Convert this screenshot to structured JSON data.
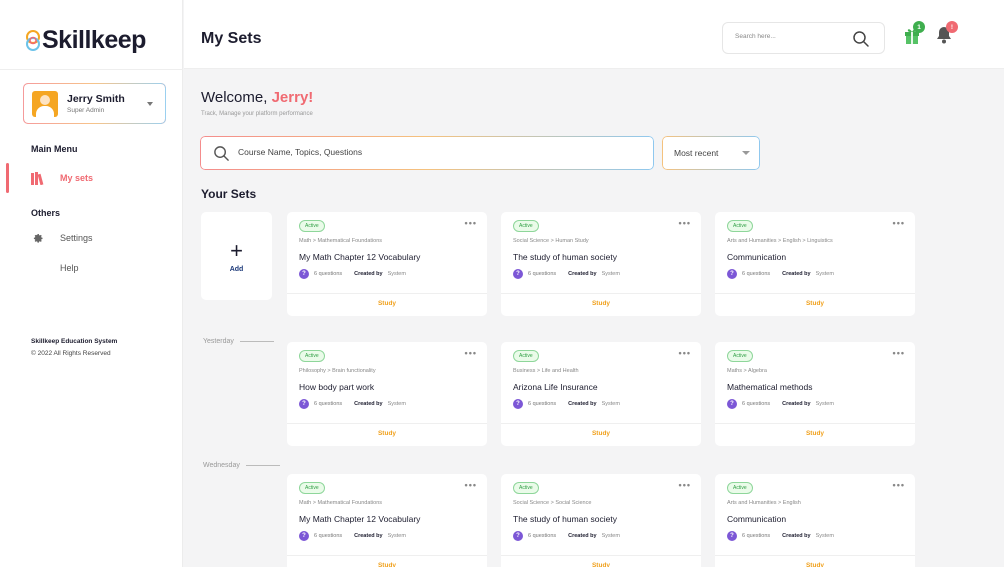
{
  "brand": {
    "name": "Skillkeep"
  },
  "sidebar": {
    "user": {
      "name": "Jerry Smith",
      "role": "Super Admin"
    },
    "main_menu_heading": "Main Menu",
    "my_sets_label": "My sets",
    "others_heading": "Others",
    "settings_label": "Settings",
    "help_label": "Help",
    "footer_title": "Skillkeep Education System",
    "footer_copy": "© 2022 All Rights Reserved"
  },
  "header": {
    "title": "My Sets",
    "search_placeholder": "Search here...",
    "gift_badge": "1",
    "bell_badge": "!"
  },
  "main": {
    "welcome_prefix": "Welcome, ",
    "welcome_name": "Jerry!",
    "welcome_sub": "Track, Manage your platform performance",
    "search_placeholder": "Course Name, Topics, Questions",
    "sort_value": "Most recent",
    "section_title": "Your Sets",
    "add_label": "Add",
    "group_yesterday": "Yesterday",
    "group_wednesday": "Wednesday"
  },
  "cards": [
    {
      "status": "Active",
      "crumb": "Math > Mathematical Foundations",
      "title": "My Math Chapter 12 Vocabulary",
      "questions": "6 questions",
      "created_label": "Created by",
      "creator": "System",
      "action": "Study"
    },
    {
      "status": "Active",
      "crumb": "Social Science > Human Study",
      "title": "The study of human society",
      "questions": "6 questions",
      "created_label": "Created by",
      "creator": "System",
      "action": "Study"
    },
    {
      "status": "Active",
      "crumb": "Arts and Humanities > English > Linguistics",
      "title": "Communication",
      "questions": "6 questions",
      "created_label": "Created by",
      "creator": "System",
      "action": "Study"
    },
    {
      "status": "Active",
      "crumb": "Philosophy > Brain functionality",
      "title": "How body part work",
      "questions": "6 questions",
      "created_label": "Created by",
      "creator": "System",
      "action": "Study"
    },
    {
      "status": "Active",
      "crumb": "Business > Life and Health",
      "title": "Arizona Life Insurance",
      "questions": "6 questions",
      "created_label": "Created by",
      "creator": "System",
      "action": "Study"
    },
    {
      "status": "Active",
      "crumb": "Maths > Algebra",
      "title": "Mathematical methods",
      "questions": "6 questions",
      "created_label": "Created by",
      "creator": "System",
      "action": "Study"
    },
    {
      "status": "Active",
      "crumb": "Math > Mathematical Foundations",
      "title": "My Math Chapter 12 Vocabulary",
      "questions": "6 questions",
      "created_label": "Created by",
      "creator": "System",
      "action": "Study"
    },
    {
      "status": "Active",
      "crumb": "Social Science > Social Science",
      "title": "The study of human society",
      "questions": "6 questions",
      "created_label": "Created by",
      "creator": "System",
      "action": "Study"
    },
    {
      "status": "Active",
      "crumb": "Arts and Humanities > English",
      "title": "Communication",
      "questions": "6 questions",
      "created_label": "Created by",
      "creator": "System",
      "action": "Study"
    }
  ],
  "colors": {
    "accent": "#f06a72",
    "study": "#f0a01b",
    "active_green": "#2f9e44",
    "question_purple": "#7c57d6"
  }
}
